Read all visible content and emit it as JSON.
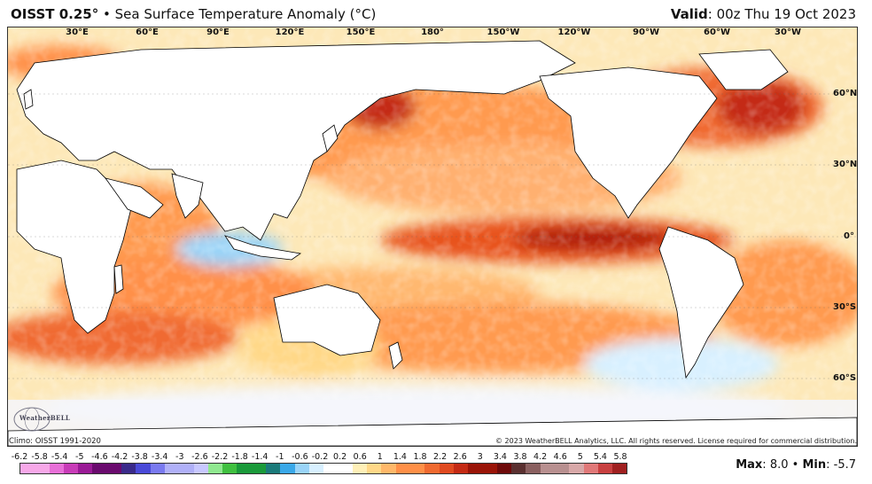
{
  "header": {
    "product": "OISST 0.25",
    "product_degree": "°",
    "separator": "•",
    "subtitle": "Sea Surface Temperature Anomaly (°C)",
    "valid_label": "Valid",
    "valid_value": ": 00z Thu 19 Oct 2023"
  },
  "map": {
    "lon_labels": [
      "30°E",
      "60°E",
      "90°E",
      "120°E",
      "150°E",
      "180°",
      "150°W",
      "120°W",
      "90°W",
      "60°W",
      "30°W"
    ],
    "lat_labels": [
      "60°N",
      "30°N",
      "0°",
      "30°S",
      "60°S"
    ],
    "ocean_base_color": "#f4f6fb",
    "land_color": "#ffffff",
    "border_color": "#000000"
  },
  "footer": {
    "climo": "Climo: OISST 1991-2020",
    "copyright": "© 2023 WeatherBELL Analytics, LLC. All rights reserved. License required for commercial distribution.",
    "logo_text": "WeatherBELL"
  },
  "colorbar": {
    "labels": [
      "-6.2",
      "-5.8",
      "-5.4",
      "-5",
      "-4.6",
      "-4.2",
      "-3.8",
      "-3.4",
      "-3",
      "-2.6",
      "-2.2",
      "-1.8",
      "-1.4",
      "-1",
      "-0.6",
      "-0.2",
      "0.2",
      "0.6",
      "1",
      "1.4",
      "1.8",
      "2.2",
      "2.6",
      "3",
      "3.4",
      "3.8",
      "4.2",
      "4.6",
      "5",
      "5.4",
      "5.8"
    ],
    "colors": [
      "#f7a8e8",
      "#e870d8",
      "#c83cb8",
      "#9a1a96",
      "#6a0a6e",
      "#3a2a8a",
      "#4a4ad8",
      "#7a7af0",
      "#b0b0f8",
      "#c8c8ff",
      "#90e890",
      "#40c040",
      "#1a9a3a",
      "#1a7a7a",
      "#3aa8e8",
      "#9ad4f8",
      "#d8f0ff",
      "#ffffff",
      "#fff0b8",
      "#ffd888",
      "#ffb86a",
      "#ff9048",
      "#f06a30",
      "#e04a20",
      "#c42a14",
      "#9a1408",
      "#6e0a0a",
      "#5a3030",
      "#8a6060",
      "#b89090",
      "#d8a8a8",
      "#e07878",
      "#c84040",
      "#a02020"
    ],
    "num_cells": 42
  },
  "stats": {
    "max_label": "Max",
    "max_value": "8.0",
    "bullet": "•",
    "min_label": "Min",
    "min_value": "-5.7"
  }
}
